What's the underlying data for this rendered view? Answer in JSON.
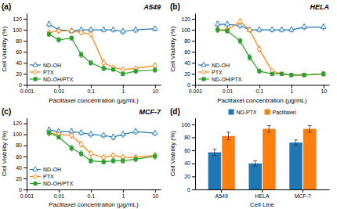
{
  "chart_data": [
    {
      "type": "line",
      "title": "A549",
      "annotations": [
        "(a)"
      ],
      "x_label": "Paclitaxel concentration (μg/mL)",
      "y_label": "Cell Viability (%)",
      "log": "x",
      "x": [
        0.005,
        0.01,
        0.025,
        0.05,
        0.1,
        0.25,
        0.5,
        1.0,
        2.5,
        10.0
      ],
      "xlim": [
        0.001,
        15
      ],
      "xticks": [
        0.001,
        0.01,
        0.1,
        1,
        10
      ],
      "ylim": [
        0,
        130
      ],
      "yticks": [
        0,
        20,
        40,
        60,
        80,
        100,
        120
      ],
      "legend": "lower left",
      "series": [
        {
          "name": "ND-OH",
          "marker": "triangle-open",
          "values": [
            110,
            100,
            98,
            100,
            100,
            100,
            100,
            97,
            100,
            102
          ],
          "errors": [
            5,
            4,
            4,
            4,
            4,
            4,
            4,
            5,
            5,
            4
          ]
        },
        {
          "name": "PTX",
          "marker": "circle-open",
          "values": [
            95,
            98,
            98,
            95,
            92,
            40,
            32,
            28,
            30,
            35
          ],
          "errors": [
            5,
            4,
            4,
            4,
            5,
            5,
            4,
            4,
            4,
            5
          ]
        },
        {
          "name": "ND-OH/PTX",
          "marker": "square",
          "values": [
            92,
            82,
            85,
            55,
            40,
            30,
            28,
            20,
            25,
            27
          ],
          "errors": [
            4,
            4,
            4,
            5,
            4,
            4,
            3,
            3,
            4,
            4
          ]
        }
      ]
    },
    {
      "type": "line",
      "title": "HELA",
      "annotations": [
        "(b)"
      ],
      "x_label": "Paclitaxel concentration (μg/mL)",
      "y_label": "Cell Viability (%)",
      "log": "x",
      "x": [
        0.005,
        0.01,
        0.025,
        0.05,
        0.1,
        0.25,
        0.5,
        1.0,
        2.5,
        10.0
      ],
      "xlim": [
        0.001,
        15
      ],
      "xticks": [
        0.001,
        0.01,
        0.1,
        1,
        10
      ],
      "ylim": [
        0,
        130
      ],
      "yticks": [
        0,
        20,
        40,
        60,
        80,
        100,
        120
      ],
      "legend": "lower left",
      "series": [
        {
          "name": "ND-OH",
          "marker": "triangle-open",
          "values": [
            110,
            110,
            108,
            100,
            100,
            100,
            100,
            100,
            105,
            105
          ],
          "errors": [
            5,
            5,
            5,
            4,
            4,
            4,
            4,
            4,
            5,
            5
          ]
        },
        {
          "name": "PTX",
          "marker": "circle-open",
          "values": [
            100,
            100,
            115,
            100,
            65,
            25,
            20,
            18,
            18,
            20
          ],
          "errors": [
            5,
            4,
            5,
            4,
            5,
            4,
            3,
            3,
            3,
            4
          ]
        },
        {
          "name": "ND-OH/PTX",
          "marker": "square",
          "values": [
            100,
            98,
            80,
            50,
            25,
            20,
            20,
            18,
            18,
            20
          ],
          "errors": [
            4,
            4,
            5,
            5,
            4,
            3,
            3,
            3,
            3,
            4
          ]
        }
      ]
    },
    {
      "type": "line",
      "title": "MCF-7",
      "annotations": [
        "(c)"
      ],
      "x_label": "Paclitaxel concentration (μg/mL)",
      "y_label": "Cell Viability (%)",
      "log": "x",
      "x": [
        0.005,
        0.01,
        0.025,
        0.05,
        0.1,
        0.25,
        0.5,
        1.0,
        2.5,
        10.0
      ],
      "xlim": [
        0.001,
        15
      ],
      "xticks": [
        0.001,
        0.01,
        0.1,
        1,
        10
      ],
      "ylim": [
        0,
        130
      ],
      "yticks": [
        0,
        20,
        40,
        60,
        80,
        100,
        120
      ],
      "legend": "lower left",
      "series": [
        {
          "name": "ND-OH",
          "marker": "triangle-open",
          "values": [
            108,
            105,
            105,
            103,
            100,
            98,
            95,
            100,
            105,
            102
          ],
          "errors": [
            5,
            4,
            5,
            4,
            5,
            4,
            5,
            5,
            5,
            4
          ]
        },
        {
          "name": "PTX",
          "marker": "circle-open",
          "values": [
            102,
            100,
            98,
            82,
            65,
            58,
            62,
            58,
            58,
            62
          ],
          "errors": [
            4,
            4,
            5,
            5,
            5,
            5,
            4,
            5,
            5,
            5
          ]
        },
        {
          "name": "ND-OH/PTX",
          "marker": "square",
          "values": [
            103,
            95,
            75,
            65,
            52,
            50,
            52,
            52,
            55,
            60
          ],
          "errors": [
            5,
            4,
            5,
            5,
            5,
            4,
            4,
            4,
            5,
            5
          ]
        }
      ]
    },
    {
      "type": "bar",
      "annotations": [
        "(d)"
      ],
      "x_label": "Cell Line",
      "y_label": "Cell Viability (%)",
      "categories": [
        "A549",
        "HELA",
        "MCF-7"
      ],
      "ylim": [
        0,
        110
      ],
      "yticks": [
        0,
        20,
        40,
        60,
        80,
        100
      ],
      "legend": "upper center",
      "series": [
        {
          "name": "ND-PTX",
          "values": [
            57,
            40,
            72
          ],
          "errors": [
            5,
            4,
            4
          ]
        },
        {
          "name": "Paclitaxel",
          "values": [
            82,
            93,
            93
          ],
          "errors": [
            6,
            5,
            5
          ]
        }
      ]
    }
  ]
}
